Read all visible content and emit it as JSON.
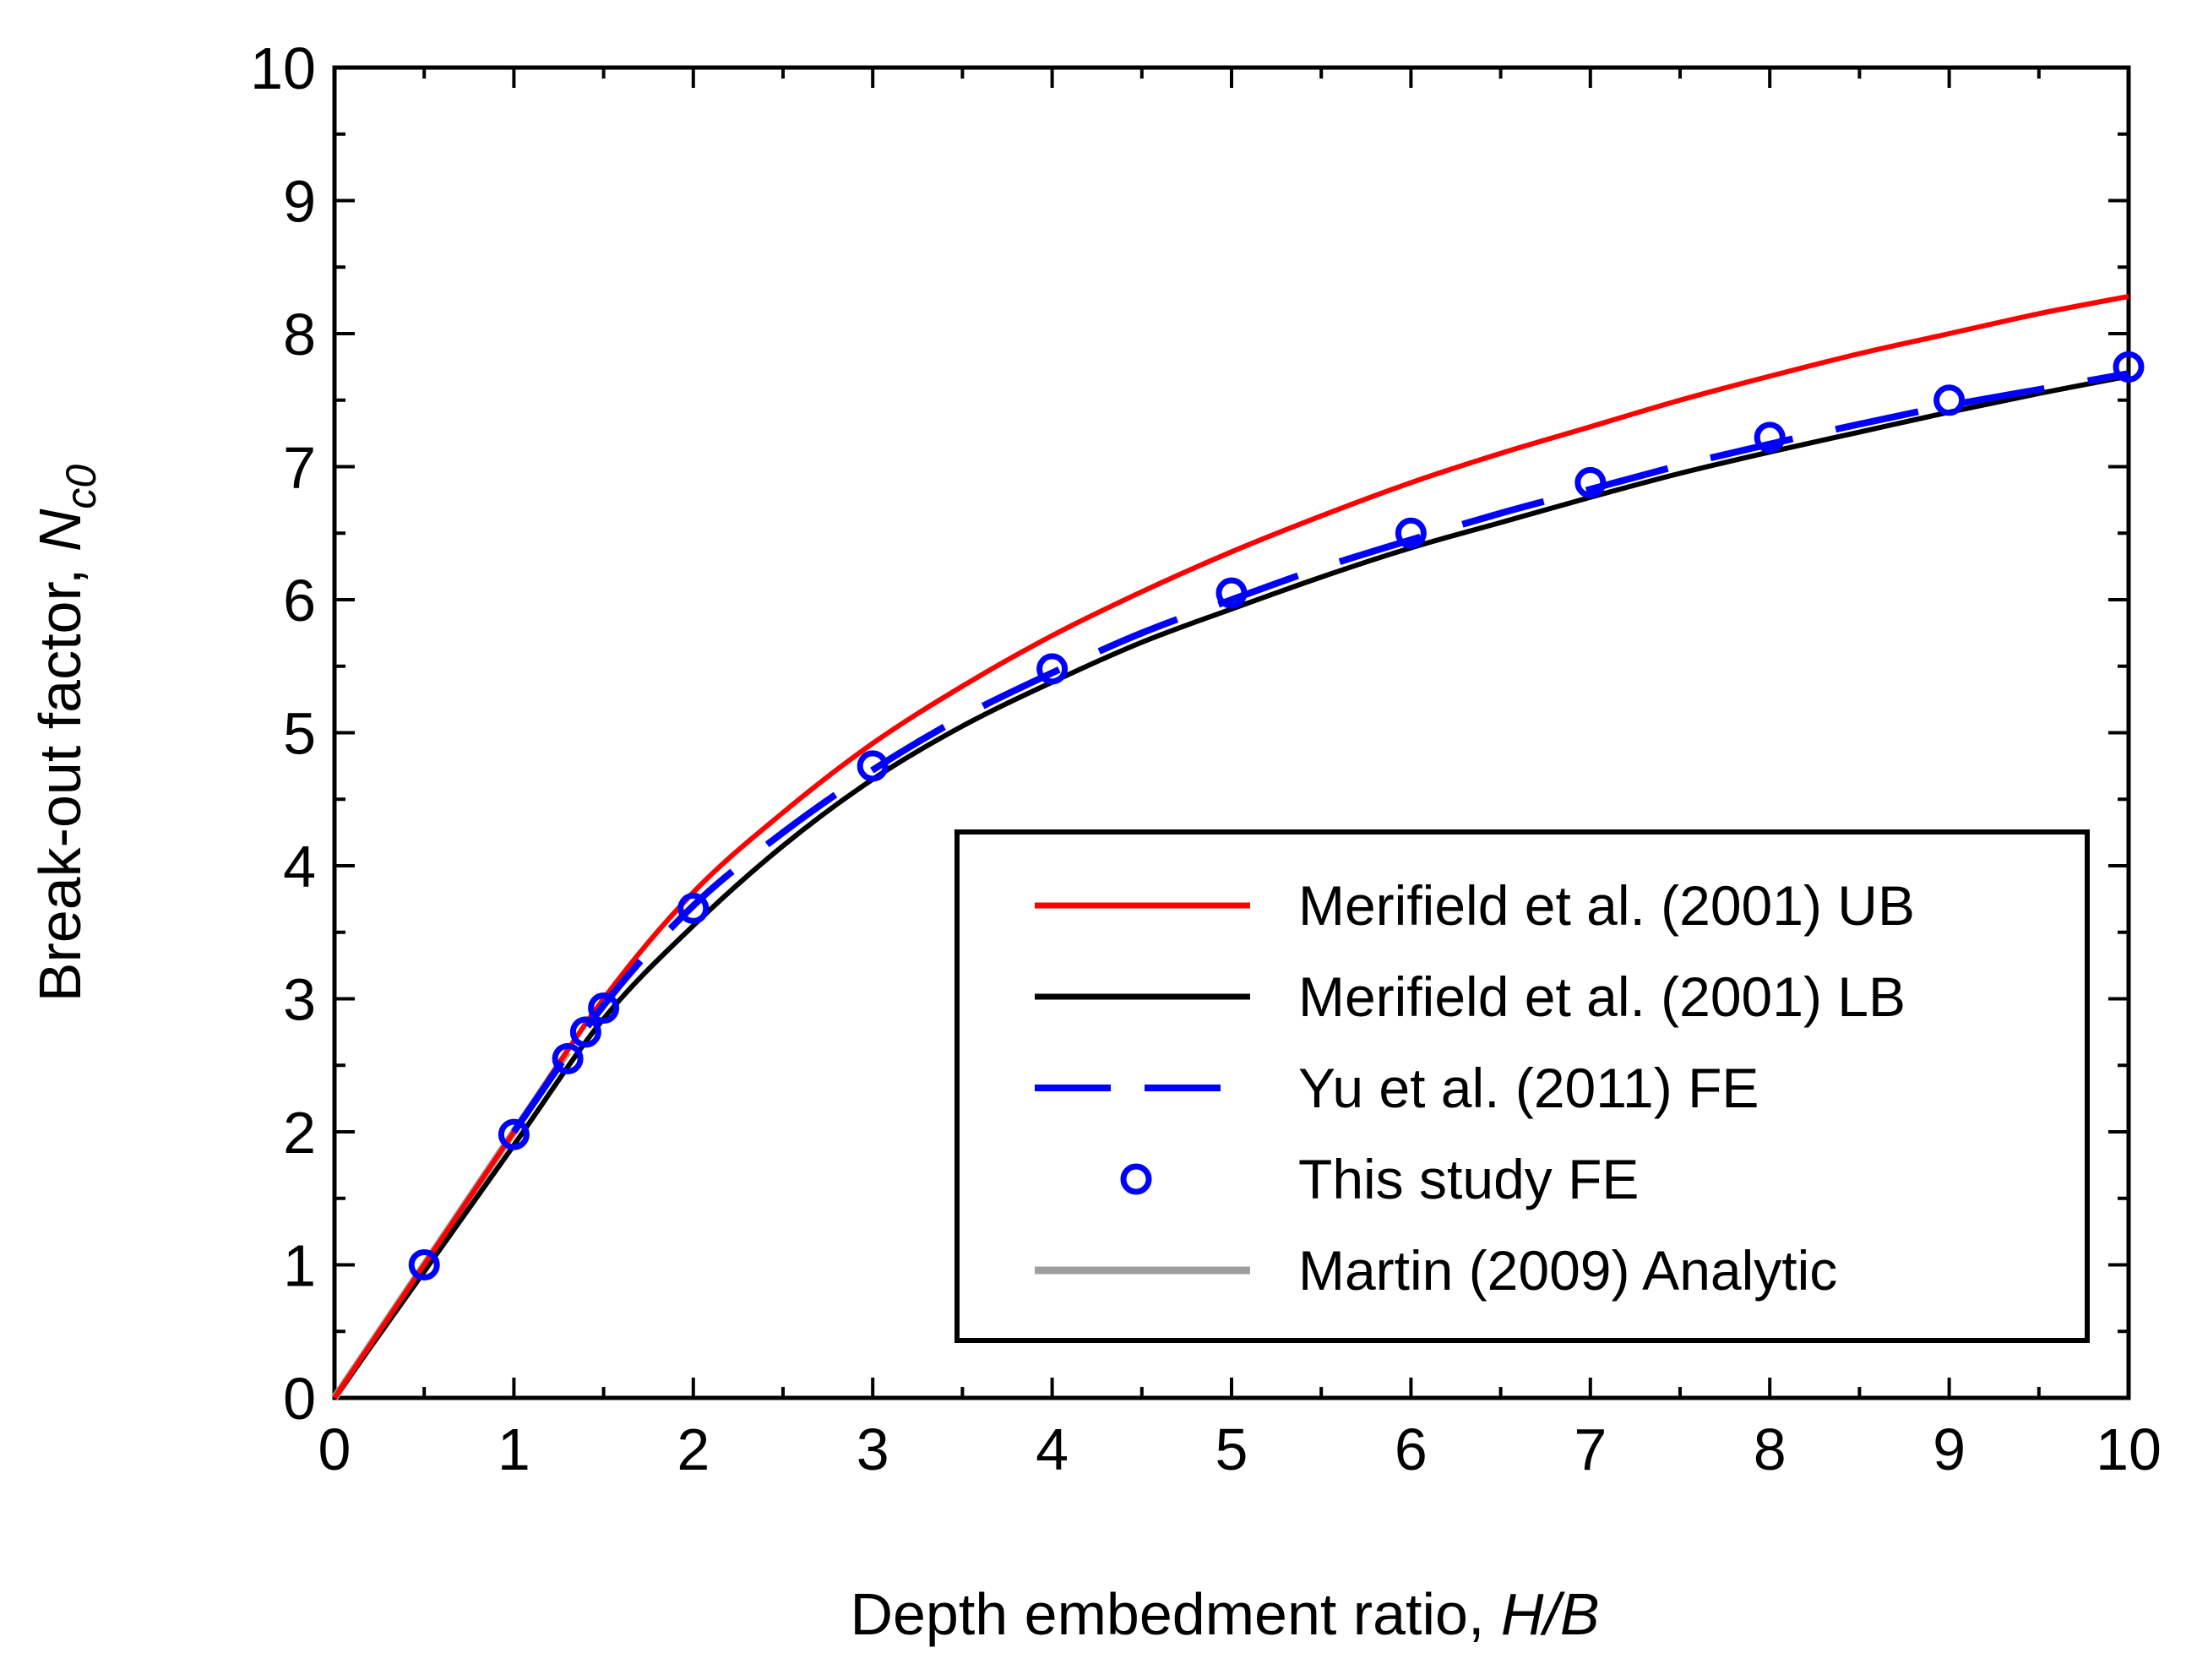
{
  "chart_data": {
    "type": "line",
    "title": "",
    "xlabel": "Depth embedment ratio, ",
    "xlabel_italic": "H/B",
    "ylabel": "Break-out factor, ",
    "ylabel_italic": "N",
    "ylabel_sub": "c0",
    "xlim": [
      0,
      10
    ],
    "ylim": [
      0,
      10
    ],
    "xticks": [
      "0",
      "1",
      "2",
      "3",
      "4",
      "5",
      "6",
      "7",
      "8",
      "9",
      "10"
    ],
    "yticks": [
      "0",
      "1",
      "2",
      "3",
      "4",
      "5",
      "6",
      "7",
      "8",
      "9",
      "10"
    ],
    "grid": false,
    "legend_position": "lower-right",
    "series": [
      {
        "name": "Merifield et al. (2001) UB",
        "color": "#ff0000",
        "style": "solid",
        "x": [
          0,
          0.5,
          1.0,
          1.5,
          2.0,
          2.5,
          3.0,
          3.5,
          4.0,
          4.5,
          5.0,
          5.5,
          6.0,
          6.5,
          7.0,
          7.5,
          8.0,
          8.5,
          9.0,
          9.5,
          10.0
        ],
        "y": [
          0,
          1.0,
          2.0,
          3.0,
          3.8,
          4.4,
          4.92,
          5.35,
          5.73,
          6.06,
          6.36,
          6.63,
          6.88,
          7.1,
          7.3,
          7.5,
          7.68,
          7.85,
          8.0,
          8.15,
          8.28
        ]
      },
      {
        "name": "Merifield et al. (2001) LB",
        "color": "#000000",
        "style": "solid",
        "x": [
          0,
          0.5,
          1.0,
          1.5,
          2.0,
          2.5,
          3.0,
          3.5,
          4.0,
          4.5,
          5.0,
          5.5,
          6.0,
          6.5,
          7.0,
          7.5,
          8.0,
          8.5,
          9.0,
          9.5,
          10.0
        ],
        "y": [
          0,
          0.95,
          1.9,
          2.85,
          3.55,
          4.15,
          4.65,
          5.05,
          5.38,
          5.68,
          5.93,
          6.17,
          6.39,
          6.58,
          6.77,
          6.95,
          7.11,
          7.26,
          7.41,
          7.55,
          7.68
        ]
      },
      {
        "name": "Yu et al. (2011) FE",
        "color": "#0000ff",
        "style": "dashed",
        "x": [
          1.0,
          1.5,
          2.0,
          2.5,
          3.0,
          3.5,
          4.0,
          4.5,
          5.0,
          5.5,
          6.0,
          6.5,
          7.0,
          7.5,
          8.0,
          8.5,
          9.0,
          9.5,
          10.0
        ],
        "y": [
          2.0,
          2.95,
          3.7,
          4.25,
          4.72,
          5.12,
          5.45,
          5.75,
          6.0,
          6.24,
          6.45,
          6.65,
          6.83,
          7.01,
          7.17,
          7.32,
          7.46,
          7.58,
          7.7
        ]
      },
      {
        "name": "This study FE",
        "color": "#0000ff",
        "style": "markers",
        "x": [
          0.5,
          1.0,
          1.3,
          1.4,
          1.5,
          2.0,
          3.0,
          4.0,
          5.0,
          6.0,
          7.0,
          8.0,
          9.0,
          10.0
        ],
        "y": [
          1.0,
          1.98,
          2.55,
          2.75,
          2.93,
          3.68,
          4.75,
          5.48,
          6.05,
          6.5,
          6.88,
          7.22,
          7.5,
          7.75
        ]
      },
      {
        "name": "Martin (2009) Analytic",
        "color": "#a0a0a0",
        "style": "solid",
        "x": [
          0,
          0.5,
          1.0,
          1.3
        ],
        "y": [
          0,
          1.0,
          2.0,
          2.6
        ]
      }
    ]
  }
}
